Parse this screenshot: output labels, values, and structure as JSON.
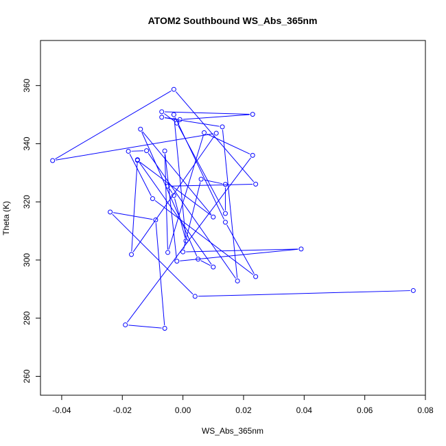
{
  "chart_data": {
    "type": "line",
    "title": "ATOM2 Southbound WS_Abs_365nm",
    "xlabel": "WS_Abs_365nm",
    "ylabel": "Theta (K)",
    "xlim": [
      -0.047,
      0.08
    ],
    "ylim": [
      253.5,
      375.5
    ],
    "xticks": [
      -0.04,
      -0.02,
      0.0,
      0.02,
      0.04,
      0.06,
      0.08
    ],
    "xtick_labels": [
      "-0.04",
      "-0.02",
      "0.00",
      "0.02",
      "0.04",
      "0.06",
      "0.08"
    ],
    "yticks": [
      260,
      280,
      300,
      320,
      340,
      360
    ],
    "ytick_labels": [
      "260",
      "280",
      "300",
      "320",
      "340",
      "360"
    ],
    "grid": false,
    "legend": "none",
    "series": [
      {
        "color": "#0000ff",
        "marker": "open-circle",
        "points": [
          [
            0.076,
            289.5
          ],
          [
            0.004,
            287.5
          ],
          [
            -0.024,
            316.5
          ],
          [
            -0.009,
            313.8
          ],
          [
            -0.006,
            276.5
          ],
          [
            -0.019,
            277.7
          ],
          [
            0.023,
            336.0
          ],
          [
            0.007,
            343.8
          ],
          [
            -0.005,
            302.6
          ],
          [
            -0.006,
            337.5
          ],
          [
            -0.002,
            299.6
          ],
          [
            0.039,
            303.8
          ],
          [
            0.0,
            302.8
          ],
          [
            0.006,
            327.8
          ],
          [
            0.014,
            326.0
          ],
          [
            0.014,
            316.0
          ],
          [
            -0.002,
            347.1
          ],
          [
            -0.007,
            351.0
          ],
          [
            0.023,
            350.1
          ],
          [
            -0.001,
            348.3
          ],
          [
            -0.007,
            349.1
          ],
          [
            0.013,
            345.8
          ],
          [
            0.018,
            292.8
          ],
          [
            -0.012,
            337.6
          ],
          [
            -0.018,
            337.4
          ],
          [
            -0.01,
            321.1
          ],
          [
            0.024,
            294.3
          ],
          [
            0.014,
            313.0
          ],
          [
            -0.003,
            350.0
          ],
          [
            0.001,
            306.6
          ],
          [
            -0.003,
            322.2
          ],
          [
            -0.005,
            325.4
          ],
          [
            0.024,
            326.1
          ],
          [
            -0.003,
            358.7
          ],
          [
            -0.043,
            334.2
          ],
          [
            0.011,
            343.6
          ],
          [
            -0.017,
            301.9
          ],
          [
            -0.015,
            334.5
          ],
          [
            0.01,
            297.6
          ],
          [
            0.005,
            300.3
          ],
          [
            -0.014,
            345.0
          ],
          [
            0.01,
            314.8
          ],
          [
            -0.015,
            334.3
          ]
        ]
      }
    ]
  }
}
